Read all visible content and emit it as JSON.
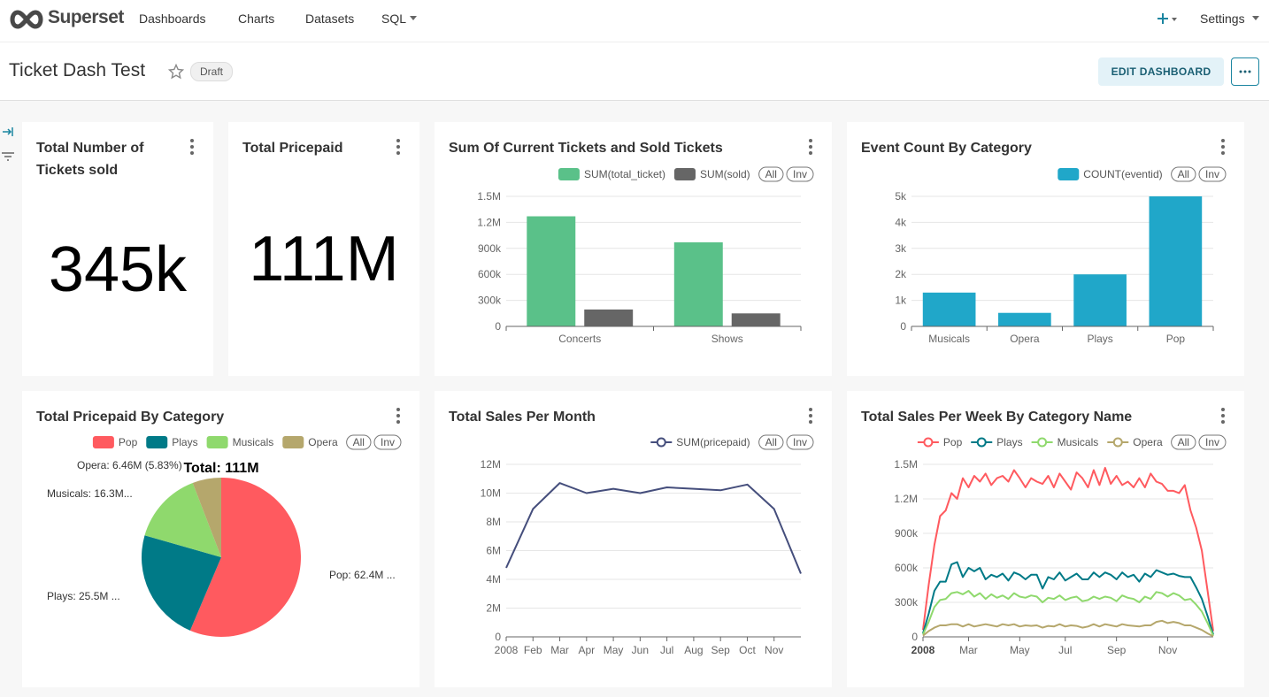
{
  "nav": {
    "brand": "Superset",
    "items": [
      "Dashboards",
      "Charts",
      "Datasets",
      "SQL"
    ],
    "settings": "Settings"
  },
  "header": {
    "title": "Ticket Dash Test",
    "badge": "Draft",
    "edit_button": "EDIT DASHBOARD"
  },
  "chart_data": [
    {
      "type": "big_number",
      "title": "Total Number of Tickets sold",
      "values": [
        345000
      ],
      "value_labels": [
        "345k"
      ]
    },
    {
      "type": "big_number",
      "title": "Total Pricepaid",
      "values": [
        111000000
      ],
      "value_labels": [
        "111M"
      ]
    },
    {
      "type": "bar",
      "title": "Sum Of Current Tickets and Sold Tickets",
      "categories": [
        "Concerts",
        "Shows"
      ],
      "series": [
        {
          "name": "SUM(total_ticket)",
          "color": "#5ac189",
          "values": [
            1270000,
            970000
          ]
        },
        {
          "name": "SUM(sold)",
          "color": "#666666",
          "values": [
            195000,
            150000
          ]
        }
      ],
      "ylim": [
        0,
        1500000
      ],
      "yticks": [
        0,
        {
          "value": 300000,
          "label": "300k"
        },
        {
          "value": 600000,
          "label": "600k"
        },
        {
          "value": 900000,
          "label": "900k"
        },
        {
          "value": 1200000,
          "label": "1.2M"
        },
        {
          "value": 1500000,
          "label": "1.5M"
        }
      ],
      "grid": true,
      "legend_controls": [
        "All",
        "Inv"
      ]
    },
    {
      "type": "bar",
      "title": "Event Count By Category",
      "categories": [
        "Musicals",
        "Opera",
        "Plays",
        "Pop"
      ],
      "series": [
        {
          "name": "COUNT(eventid)",
          "color": "#20a7c9",
          "values": [
            1300,
            520,
            2000,
            5000
          ]
        }
      ],
      "ylim": [
        0,
        5000
      ],
      "yticks": [
        0,
        {
          "value": 1000,
          "label": "1k"
        },
        {
          "value": 2000,
          "label": "2k"
        },
        {
          "value": 3000,
          "label": "3k"
        },
        {
          "value": 4000,
          "label": "4k"
        },
        {
          "value": 5000,
          "label": "5k"
        }
      ],
      "grid": true,
      "legend_controls": [
        "All",
        "Inv"
      ]
    },
    {
      "type": "pie",
      "title": "Total Pricepaid By Category",
      "categories": [
        "Pop",
        "Plays",
        "Musicals",
        "Opera"
      ],
      "values": [
        62400000,
        25500000,
        16300000,
        6460000
      ],
      "value_labels": [
        "Pop: 62.4M ...",
        "Plays: 25.5M ...",
        "Musicals: 16.3M...",
        "Opera: 6.46M (5.83%)"
      ],
      "colors": [
        "#ff5a5f",
        "#007a87",
        "#8fd96d",
        "#b5a76c"
      ],
      "total_label": "Total: 111M",
      "legend_controls": [
        "All",
        "Inv"
      ]
    },
    {
      "type": "line",
      "title": "Total Sales Per Month",
      "categories": [
        "2008",
        "Feb",
        "Mar",
        "Apr",
        "May",
        "Jun",
        "Jul",
        "Aug",
        "Sep",
        "Oct",
        "Nov",
        null
      ],
      "series": [
        {
          "name": "SUM(pricepaid)",
          "color": "#454e7c",
          "values": [
            4800000,
            8900000,
            10700000,
            10000000,
            10300000,
            10000000,
            10400000,
            10300000,
            10200000,
            10600000,
            8900000,
            4400000
          ]
        }
      ],
      "ylim": [
        0,
        12000000
      ],
      "yticks": [
        0,
        {
          "value": 2000000,
          "label": "2M"
        },
        {
          "value": 4000000,
          "label": "4M"
        },
        {
          "value": 6000000,
          "label": "6M"
        },
        {
          "value": 8000000,
          "label": "8M"
        },
        {
          "value": 10000000,
          "label": "10M"
        },
        {
          "value": 12000000,
          "label": "12M"
        }
      ],
      "grid": true,
      "legend_controls": [
        "All",
        "Inv"
      ]
    },
    {
      "type": "line",
      "title": "Total Sales Per Week By Category Name",
      "categories": [
        "2008",
        null,
        null,
        null,
        null,
        null,
        null,
        null,
        "Mar",
        null,
        null,
        null,
        null,
        null,
        null,
        null,
        null,
        "May",
        null,
        null,
        null,
        null,
        null,
        null,
        null,
        "Jul",
        null,
        null,
        null,
        null,
        null,
        null,
        null,
        null,
        "Sep",
        null,
        null,
        null,
        null,
        null,
        null,
        null,
        null,
        "Nov",
        null,
        null,
        null,
        null,
        null,
        null,
        null,
        null
      ],
      "series": [
        {
          "name": "Pop",
          "color": "#ff5a5f",
          "values": [
            60000,
            450000,
            800000,
            1050000,
            1100000,
            1250000,
            1200000,
            1380000,
            1300000,
            1400000,
            1350000,
            1420000,
            1320000,
            1380000,
            1400000,
            1350000,
            1450000,
            1380000,
            1300000,
            1380000,
            1350000,
            1330000,
            1400000,
            1300000,
            1420000,
            1350000,
            1280000,
            1430000,
            1380000,
            1300000,
            1450000,
            1320000,
            1470000,
            1330000,
            1400000,
            1320000,
            1350000,
            1300000,
            1380000,
            1300000,
            1420000,
            1350000,
            1330000,
            1270000,
            1270000,
            1250000,
            1320000,
            1100000,
            950000,
            750000,
            400000,
            50000
          ]
        },
        {
          "name": "Plays",
          "color": "#007a87",
          "values": [
            30000,
            200000,
            400000,
            480000,
            480000,
            630000,
            650000,
            520000,
            600000,
            570000,
            600000,
            500000,
            540000,
            520000,
            550000,
            490000,
            560000,
            540000,
            500000,
            540000,
            540000,
            420000,
            520000,
            500000,
            560000,
            490000,
            520000,
            550000,
            500000,
            500000,
            560000,
            520000,
            560000,
            540000,
            500000,
            560000,
            520000,
            540000,
            480000,
            550000,
            520000,
            580000,
            560000,
            540000,
            550000,
            530000,
            520000,
            520000,
            430000,
            330000,
            180000,
            20000
          ]
        },
        {
          "name": "Musicals",
          "color": "#8fd96d",
          "values": [
            20000,
            130000,
            260000,
            320000,
            330000,
            380000,
            390000,
            370000,
            400000,
            350000,
            380000,
            330000,
            370000,
            340000,
            360000,
            330000,
            380000,
            350000,
            340000,
            360000,
            350000,
            300000,
            340000,
            330000,
            360000,
            320000,
            340000,
            350000,
            310000,
            320000,
            350000,
            330000,
            350000,
            340000,
            310000,
            360000,
            340000,
            330000,
            300000,
            350000,
            330000,
            390000,
            380000,
            350000,
            380000,
            360000,
            320000,
            330000,
            280000,
            220000,
            120000,
            10000
          ]
        },
        {
          "name": "Opera",
          "color": "#b5a76c",
          "values": [
            10000,
            50000,
            80000,
            100000,
            100000,
            110000,
            110000,
            90000,
            110000,
            90000,
            100000,
            110000,
            100000,
            90000,
            110000,
            100000,
            110000,
            90000,
            100000,
            95000,
            100000,
            80000,
            95000,
            90000,
            110000,
            90000,
            100000,
            95000,
            80000,
            90000,
            110000,
            90000,
            110000,
            100000,
            90000,
            110000,
            100000,
            95000,
            90000,
            100000,
            100000,
            130000,
            140000,
            120000,
            130000,
            120000,
            100000,
            100000,
            80000,
            60000,
            30000,
            5000
          ]
        }
      ],
      "ylim": [
        0,
        1500000
      ],
      "yticks": [
        0,
        {
          "value": 300000,
          "label": "300k"
        },
        {
          "value": 600000,
          "label": "600k"
        },
        {
          "value": 900000,
          "label": "900k"
        },
        {
          "value": 1200000,
          "label": "1.2M"
        },
        {
          "value": 1500000,
          "label": "1.5M"
        }
      ],
      "grid": true,
      "legend_controls": [
        "All",
        "Inv"
      ]
    }
  ]
}
